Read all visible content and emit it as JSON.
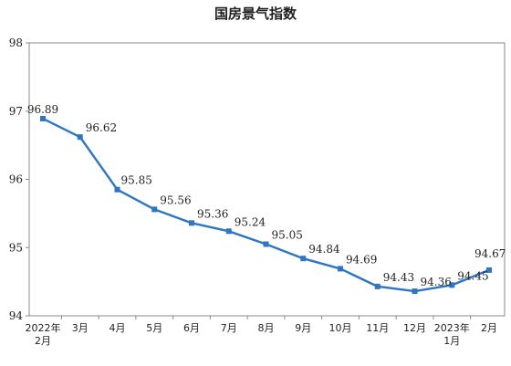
{
  "chart_data": {
    "type": "line",
    "title": "国房景气指数",
    "xlabel": "",
    "ylabel": "",
    "ylim": [
      94,
      98
    ],
    "yticks": [
      "94",
      "95",
      "96",
      "97",
      "98"
    ],
    "grid": false,
    "legend": "none",
    "line_color": "#2e75c4",
    "categories": [
      [
        "2022年",
        "2月"
      ],
      [
        "3月"
      ],
      [
        "4月"
      ],
      [
        "5月"
      ],
      [
        "6月"
      ],
      [
        "7月"
      ],
      [
        "8月"
      ],
      [
        "9月"
      ],
      [
        "10月"
      ],
      [
        "11月"
      ],
      [
        "12月"
      ],
      [
        "2023年",
        "1月"
      ],
      [
        "2月"
      ]
    ],
    "series": [
      {
        "values": [
          96.89,
          96.62,
          95.85,
          95.56,
          95.36,
          95.24,
          95.05,
          94.84,
          94.69,
          94.43,
          94.36,
          94.45,
          94.67
        ],
        "labels": [
          "96.89",
          "96.62",
          "95.85",
          "95.56",
          "95.36",
          "95.24",
          "95.05",
          "94.84",
          "94.69",
          "94.43",
          "94.36",
          "94.45",
          "94.67"
        ]
      }
    ]
  }
}
